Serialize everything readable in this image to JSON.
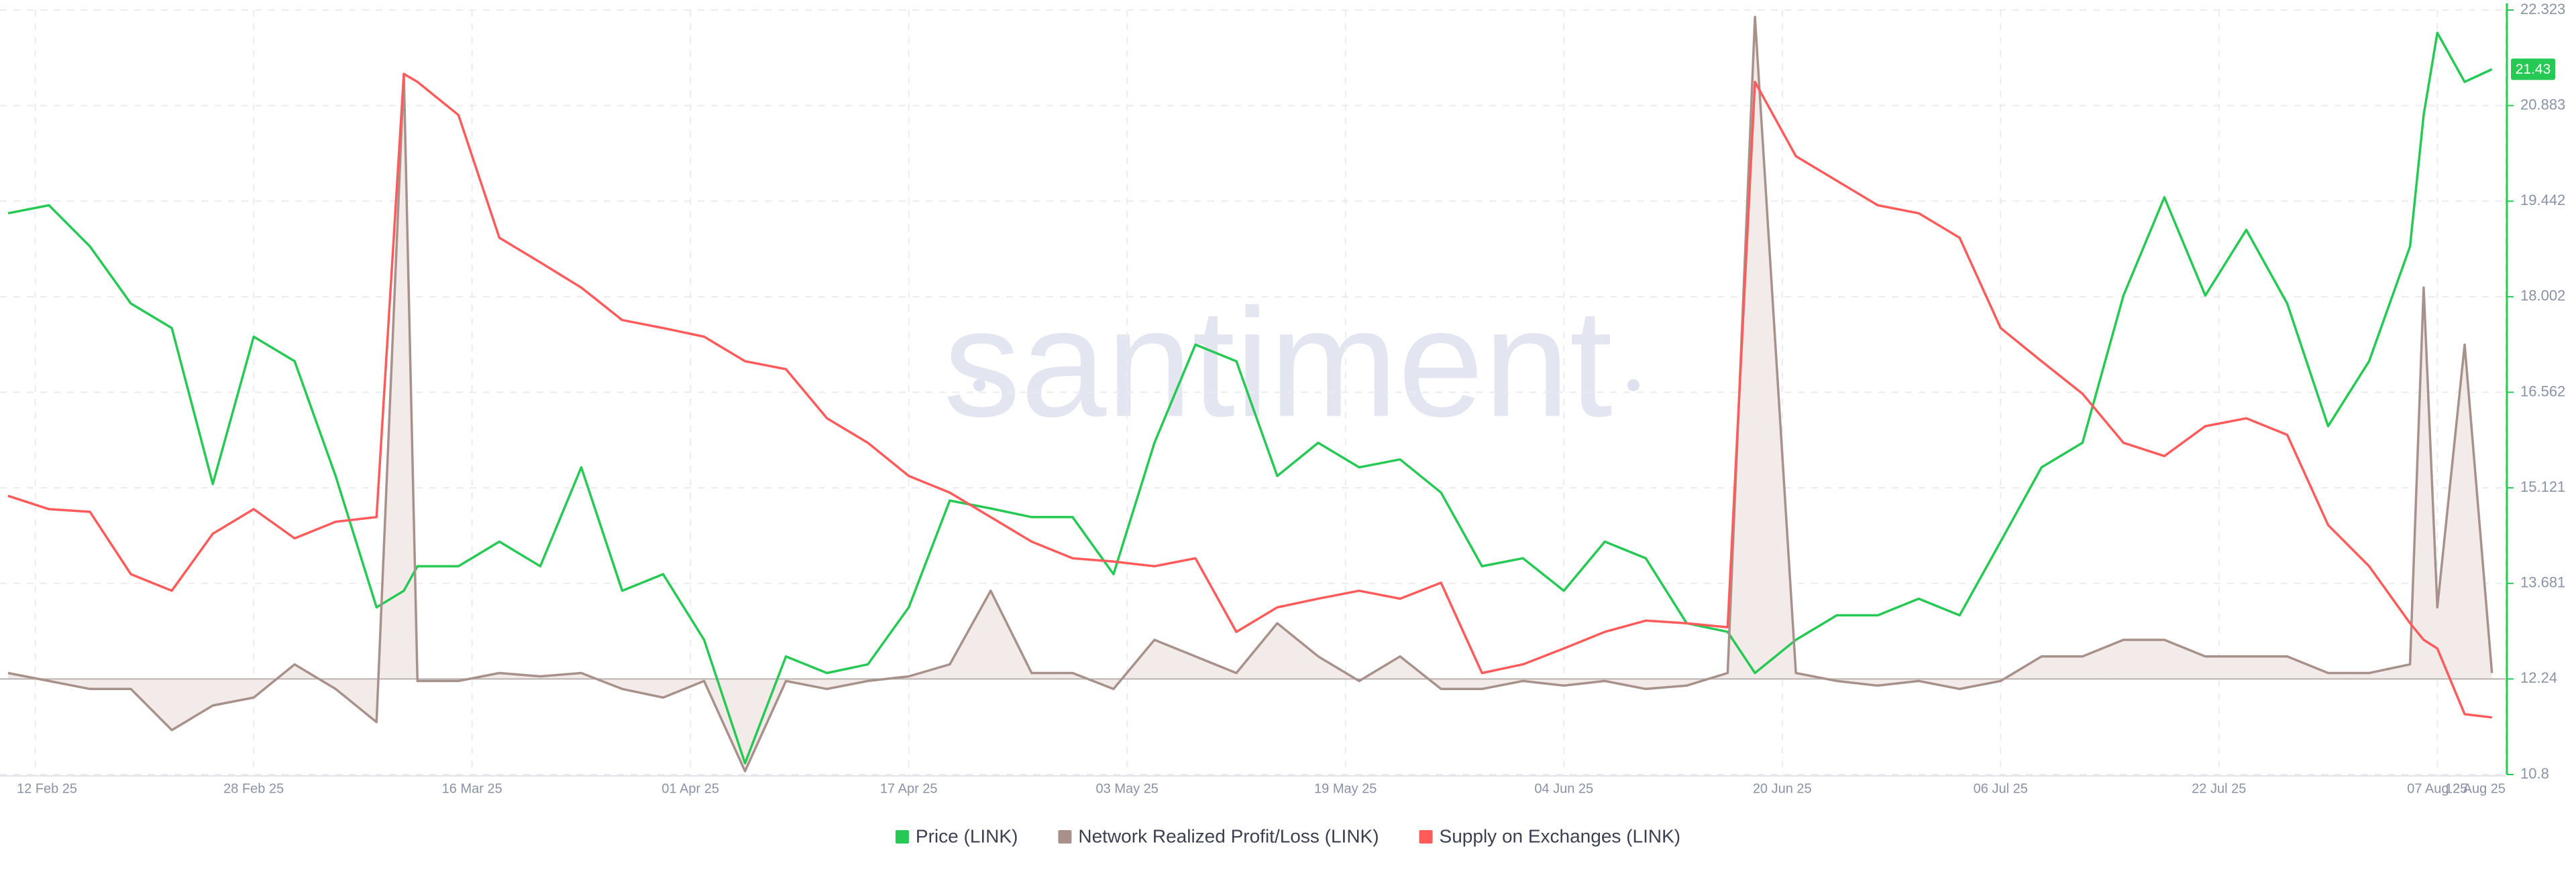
{
  "chart_data": {
    "type": "line",
    "watermark": "santiment",
    "x": [
      "2025-02-10",
      "2025-02-13",
      "2025-02-16",
      "2025-02-19",
      "2025-02-22",
      "2025-02-25",
      "2025-02-28",
      "2025-03-03",
      "2025-03-06",
      "2025-03-09",
      "2025-03-11",
      "2025-03-12",
      "2025-03-15",
      "2025-03-18",
      "2025-03-21",
      "2025-03-24",
      "2025-03-27",
      "2025-03-30",
      "2025-04-02",
      "2025-04-05",
      "2025-04-08",
      "2025-04-11",
      "2025-04-14",
      "2025-04-17",
      "2025-04-20",
      "2025-04-23",
      "2025-04-26",
      "2025-04-29",
      "2025-05-02",
      "2025-05-05",
      "2025-05-08",
      "2025-05-11",
      "2025-05-14",
      "2025-05-17",
      "2025-05-20",
      "2025-05-23",
      "2025-05-26",
      "2025-05-29",
      "2025-06-01",
      "2025-06-04",
      "2025-06-07",
      "2025-06-10",
      "2025-06-13",
      "2025-06-16",
      "2025-06-18",
      "2025-06-21",
      "2025-06-24",
      "2025-06-27",
      "2025-06-30",
      "2025-07-03",
      "2025-07-06",
      "2025-07-09",
      "2025-07-12",
      "2025-07-15",
      "2025-07-18",
      "2025-07-21",
      "2025-07-24",
      "2025-07-27",
      "2025-07-30",
      "2025-08-02",
      "2025-08-05",
      "2025-08-06",
      "2025-08-07",
      "2025-08-09",
      "2025-08-11"
    ],
    "series": [
      {
        "name": "Price (LINK)",
        "color": "#26c953",
        "values": [
          19.26,
          19.38,
          18.76,
          17.9,
          17.53,
          15.18,
          17.4,
          17.03,
          15.3,
          13.32,
          13.57,
          13.94,
          13.94,
          14.31,
          13.94,
          15.43,
          13.57,
          13.82,
          12.83,
          10.97,
          12.58,
          12.33,
          12.46,
          13.32,
          14.93,
          14.81,
          14.68,
          14.68,
          13.82,
          15.8,
          17.28,
          17.03,
          15.3,
          15.8,
          15.43,
          15.55,
          15.05,
          13.94,
          14.06,
          13.57,
          14.31,
          14.06,
          13.08,
          12.95,
          12.33,
          12.83,
          13.2,
          13.2,
          13.45,
          13.2,
          14.31,
          15.43,
          15.8,
          18.02,
          19.5,
          18.02,
          19.01,
          17.9,
          16.05,
          17.03,
          18.76,
          20.74,
          21.98,
          21.24,
          21.43
        ]
      },
      {
        "name": "Network Realized Profit/Loss (LINK)",
        "color": "#a8918a",
        "fill": "#f3ebe9",
        "fill_baseline": 12.24,
        "values": [
          12.33,
          12.21,
          12.09,
          12.09,
          11.47,
          11.84,
          11.96,
          12.46,
          12.09,
          11.59,
          21.36,
          12.21,
          12.21,
          12.33,
          12.28,
          12.33,
          12.09,
          11.96,
          12.21,
          10.85,
          12.21,
          12.09,
          12.21,
          12.28,
          12.46,
          13.57,
          12.33,
          12.33,
          12.09,
          12.83,
          12.58,
          12.33,
          13.08,
          12.58,
          12.21,
          12.58,
          12.09,
          12.09,
          12.21,
          12.14,
          12.21,
          12.09,
          12.14,
          12.33,
          22.22,
          12.33,
          12.21,
          12.14,
          12.21,
          12.09,
          12.21,
          12.58,
          12.58,
          12.83,
          12.83,
          12.58,
          12.58,
          12.58,
          12.33,
          12.33,
          12.46,
          18.14,
          13.32,
          17.28,
          12.33
        ]
      },
      {
        "name": "Supply on Exchanges (LINK)",
        "color": "#ff5b5b",
        "values": [
          15.0,
          14.8,
          14.76,
          13.82,
          13.57,
          14.43,
          14.8,
          14.36,
          14.61,
          14.68,
          21.36,
          21.24,
          20.74,
          18.89,
          18.52,
          18.14,
          17.65,
          17.53,
          17.4,
          17.03,
          16.91,
          16.17,
          15.8,
          15.3,
          15.05,
          14.68,
          14.31,
          14.06,
          14.01,
          13.94,
          14.06,
          12.95,
          13.32,
          13.45,
          13.57,
          13.45,
          13.69,
          12.33,
          12.46,
          12.7,
          12.95,
          13.12,
          13.08,
          13.02,
          21.24,
          20.12,
          19.75,
          19.38,
          19.26,
          18.89,
          17.53,
          17.03,
          16.54,
          15.8,
          15.6,
          16.05,
          16.17,
          15.92,
          14.56,
          13.94,
          13.08,
          12.83,
          12.7,
          11.71,
          11.66
        ]
      }
    ],
    "xlim": [
      "2025-02-10",
      "2025-08-12"
    ],
    "xticks": [
      {
        "value": "2025-02-12",
        "label": "12 Feb 25"
      },
      {
        "value": "2025-02-28",
        "label": "28 Feb 25"
      },
      {
        "value": "2025-03-16",
        "label": "16 Mar 25"
      },
      {
        "value": "2025-04-01",
        "label": "01 Apr 25"
      },
      {
        "value": "2025-04-17",
        "label": "17 Apr 25"
      },
      {
        "value": "2025-05-03",
        "label": "03 May 25"
      },
      {
        "value": "2025-05-19",
        "label": "19 May 25"
      },
      {
        "value": "2025-06-04",
        "label": "04 Jun 25"
      },
      {
        "value": "2025-06-20",
        "label": "20 Jun 25"
      },
      {
        "value": "2025-07-06",
        "label": "06 Jul 25"
      },
      {
        "value": "2025-07-22",
        "label": "22 Jul 25"
      },
      {
        "value": "2025-08-07",
        "label": "07 Aug 25"
      },
      {
        "value": "2025-08-12",
        "label": "12 Aug 25"
      }
    ],
    "ylim": [
      10.8,
      22.323
    ],
    "yticks": [
      10.8,
      12.24,
      13.681,
      15.121,
      16.562,
      18.002,
      19.442,
      20.883,
      22.323
    ],
    "grid": true,
    "legend": "bottom"
  }
}
